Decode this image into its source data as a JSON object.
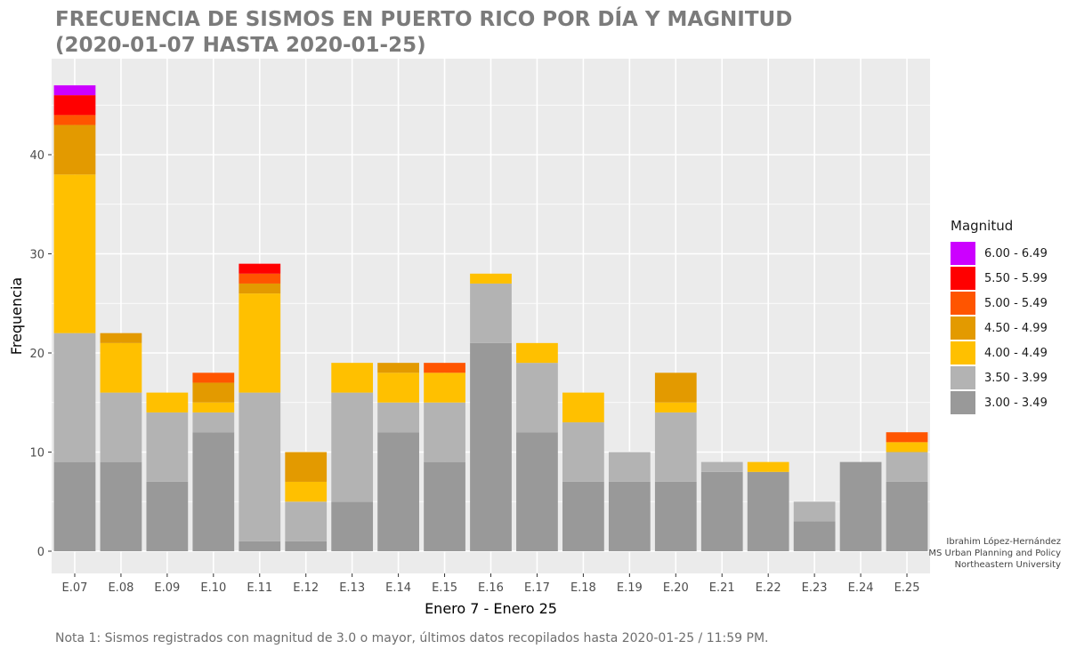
{
  "title_line1": "FRECUENCIA DE SISMOS EN PUERTO RICO POR DÍA Y MAGNITUD",
  "title_line2": "(2020-01-07 HASTA 2020-01-25)",
  "footnote": "Nota 1: Sismos registrados con magnitud de 3.0 o mayor, últimos datos recopilados hasta 2020-01-25 / 11:59 PM.",
  "credit": {
    "line1": "Ibrahim López-Hernández",
    "line2": "MS Urban Planning and Policy",
    "line3": "Northeastern University"
  },
  "colors": {
    "panel": "#ebebeb",
    "gridline": "#ffffff"
  },
  "chart_data": {
    "type": "bar",
    "stacked": true,
    "xlabel": "Enero 7 - Enero 25",
    "ylabel": "Frequencia",
    "ylim": [
      0,
      48
    ],
    "yticks": [
      0,
      10,
      20,
      30,
      40
    ],
    "grid": true,
    "legend_title": "Magnitud",
    "legend_position": "right",
    "categories": [
      "E.07",
      "E.08",
      "E.09",
      "E.10",
      "E.11",
      "E.12",
      "E.13",
      "E.14",
      "E.15",
      "E.16",
      "E.17",
      "E.18",
      "E.19",
      "E.20",
      "E.21",
      "E.22",
      "E.23",
      "E.24",
      "E.25"
    ],
    "series": [
      {
        "name": "3.00 - 3.49",
        "color": "#999999",
        "values": [
          9,
          9,
          7,
          12,
          1,
          1,
          5,
          12,
          9,
          21,
          12,
          7,
          7,
          7,
          8,
          8,
          3,
          9,
          7
        ]
      },
      {
        "name": "3.50 - 3.99",
        "color": "#b3b3b3",
        "values": [
          13,
          7,
          7,
          2,
          15,
          4,
          11,
          3,
          6,
          6,
          7,
          6,
          3,
          7,
          1,
          0,
          2,
          0,
          3
        ]
      },
      {
        "name": "4.00 - 4.49",
        "color": "#ffc000",
        "values": [
          16,
          5,
          2,
          1,
          10,
          2,
          3,
          3,
          3,
          1,
          2,
          3,
          0,
          1,
          0,
          1,
          0,
          0,
          1
        ]
      },
      {
        "name": "4.50 - 4.99",
        "color": "#e39a00",
        "values": [
          5,
          1,
          0,
          2,
          1,
          3,
          0,
          1,
          0,
          0,
          0,
          0,
          0,
          3,
          0,
          0,
          0,
          0,
          0
        ]
      },
      {
        "name": "5.00 - 5.49",
        "color": "#ff5500",
        "values": [
          1,
          0,
          0,
          1,
          1,
          0,
          0,
          0,
          1,
          0,
          0,
          0,
          0,
          0,
          0,
          0,
          0,
          0,
          1
        ]
      },
      {
        "name": "5.50 - 5.99",
        "color": "#ff0000",
        "values": [
          2,
          0,
          0,
          0,
          1,
          0,
          0,
          0,
          0,
          0,
          0,
          0,
          0,
          0,
          0,
          0,
          0,
          0,
          0
        ]
      },
      {
        "name": "6.00 - 6.49",
        "color": "#cc00ff",
        "values": [
          1,
          0,
          0,
          0,
          0,
          0,
          0,
          0,
          0,
          0,
          0,
          0,
          0,
          0,
          0,
          0,
          0,
          0,
          0
        ]
      }
    ]
  }
}
